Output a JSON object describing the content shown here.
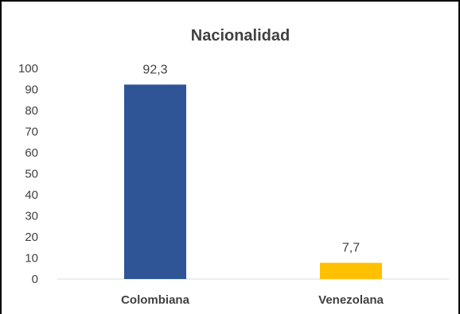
{
  "chart_data": {
    "type": "bar",
    "title": "Nacionalidad",
    "categories": [
      "Colombiana",
      "Venezolana"
    ],
    "values": [
      92.3,
      7.7
    ],
    "data_labels": [
      "92,3",
      "7,7"
    ],
    "bar_colors": [
      "#2F5597",
      "#FFC000"
    ],
    "ylim": [
      0,
      100
    ],
    "y_ticks": [
      0,
      10,
      20,
      30,
      40,
      50,
      60,
      70,
      80,
      90,
      100
    ],
    "grid": false,
    "legend": "none"
  }
}
